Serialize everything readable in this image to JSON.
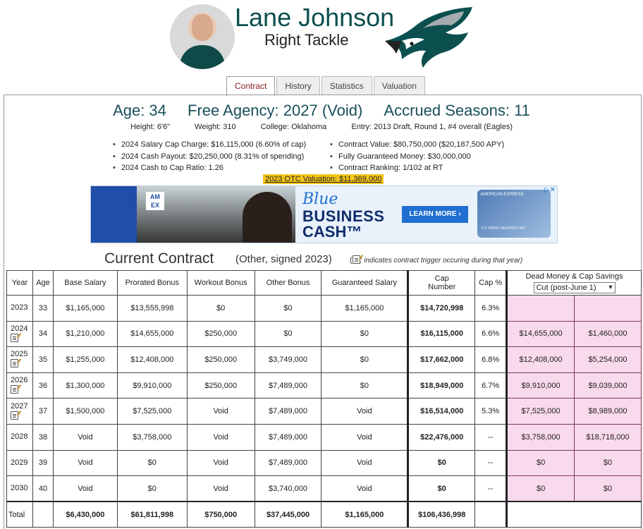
{
  "player": {
    "name": "Lane Johnson",
    "position": "Right Tackle"
  },
  "tabs": [
    "Contract",
    "History",
    "Statistics",
    "Valuation"
  ],
  "summary": {
    "age": "Age: 34",
    "free_agency": "Free Agency: 2027 (Void)",
    "accrued": "Accrued Seasons: 11"
  },
  "bio": {
    "height": "Height: 6'6\"",
    "weight": "Weight: 310",
    "college": "College: Oklahoma",
    "entry": "Entry: 2013 Draft, Round 1, #4 overall (Eagles)"
  },
  "stats_left": [
    "2024 Salary Cap Charge: $16,115,000 (6.60% of cap)",
    "2024 Cash Payout: $20,250,000 (8.31% of spending)",
    "2024 Cash to Cap Ratio: 1.26"
  ],
  "stats_right": [
    "Contract Value: $80,750,000 ($20,187,500 APY)",
    "Fully Guaranteed Money: $30,000,000",
    "Contract Ranking: 1/102 at RT"
  ],
  "valuation": "2023 OTC Valuation: $11,369,000",
  "ad": {
    "amex": "AM EX",
    "blue": "Blue",
    "business": "BUSINESS",
    "cash": "CASH™",
    "button": "LEARN MORE ›",
    "card_brand": "AMERICAN EXPRESS",
    "card_name": "C F FROST REXPORT INC"
  },
  "contract": {
    "title": "Current Contract",
    "subtitle": "(Other, signed 2023)",
    "note_open": "(",
    "note_text": ": indicates contract trigger occuring during that year)",
    "headers": [
      "Year",
      "Age",
      "Base Salary",
      "Prorated Bonus",
      "Workout Bonus",
      "Other Bonus",
      "Guaranteed Salary",
      "Cap Number",
      "Cap %"
    ],
    "dead_header": "Dead Money & Cap Savings",
    "dead_select": "Cut (post-June 1)",
    "rows": [
      {
        "year": "2023",
        "age": "33",
        "base": "$1,165,000",
        "prorated": "$13,555,998",
        "workout": "$0",
        "other": "$0",
        "guaranteed": "$1,165,000",
        "cap": "$14,720,998",
        "pct": "6.3%",
        "dead": "",
        "savings": "",
        "trigger": false
      },
      {
        "year": "2024",
        "age": "34",
        "base": "$1,210,000",
        "prorated": "$14,655,000",
        "workout": "$250,000",
        "other": "$0",
        "guaranteed": "$0",
        "cap": "$16,115,000",
        "pct": "6.6%",
        "dead": "$14,655,000",
        "savings": "$1,460,000",
        "trigger": true
      },
      {
        "year": "2025",
        "age": "35",
        "base": "$1,255,000",
        "prorated": "$12,408,000",
        "workout": "$250,000",
        "other": "$3,749,000",
        "guaranteed": "$0",
        "cap": "$17,662,000",
        "pct": "6.8%",
        "dead": "$12,408,000",
        "savings": "$5,254,000",
        "trigger": true
      },
      {
        "year": "2026",
        "age": "36",
        "base": "$1,300,000",
        "prorated": "$9,910,000",
        "workout": "$250,000",
        "other": "$7,489,000",
        "guaranteed": "$0",
        "cap": "$18,949,000",
        "pct": "6.7%",
        "dead": "$9,910,000",
        "savings": "$9,039,000",
        "trigger": true
      },
      {
        "year": "2027",
        "age": "37",
        "base": "$1,500,000",
        "prorated": "$7,525,000",
        "workout": "Void",
        "other": "$7,489,000",
        "guaranteed": "Void",
        "cap": "$16,514,000",
        "pct": "5.3%",
        "dead": "$7,525,000",
        "savings": "$8,989,000",
        "trigger": true
      },
      {
        "year": "2028",
        "age": "38",
        "base": "Void",
        "prorated": "$3,758,000",
        "workout": "Void",
        "other": "$7,489,000",
        "guaranteed": "Void",
        "cap": "$22,476,000",
        "pct": "--",
        "dead": "$3,758,000",
        "savings": "$18,718,000",
        "trigger": false
      },
      {
        "year": "2029",
        "age": "39",
        "base": "Void",
        "prorated": "$0",
        "workout": "Void",
        "other": "$7,489,000",
        "guaranteed": "Void",
        "cap": "$0",
        "pct": "--",
        "dead": "$0",
        "savings": "$0",
        "trigger": false
      },
      {
        "year": "2030",
        "age": "40",
        "base": "Void",
        "prorated": "$0",
        "workout": "Void",
        "other": "$3,740,000",
        "guaranteed": "Void",
        "cap": "$0",
        "pct": "--",
        "dead": "$0",
        "savings": "$0",
        "trigger": false
      }
    ],
    "total": {
      "label": "Total",
      "base": "$6,430,000",
      "prorated": "$61,811,998",
      "workout": "$750,000",
      "other": "$37,445,000",
      "guaranteed": "$1,165,000",
      "cap": "$106,436,998"
    }
  },
  "colors": {
    "name": "#0b4f4f",
    "dead_bg": "#f9d9ec",
    "valuation_bg": "#f5c518",
    "active_tab": "#8b1c1c"
  }
}
